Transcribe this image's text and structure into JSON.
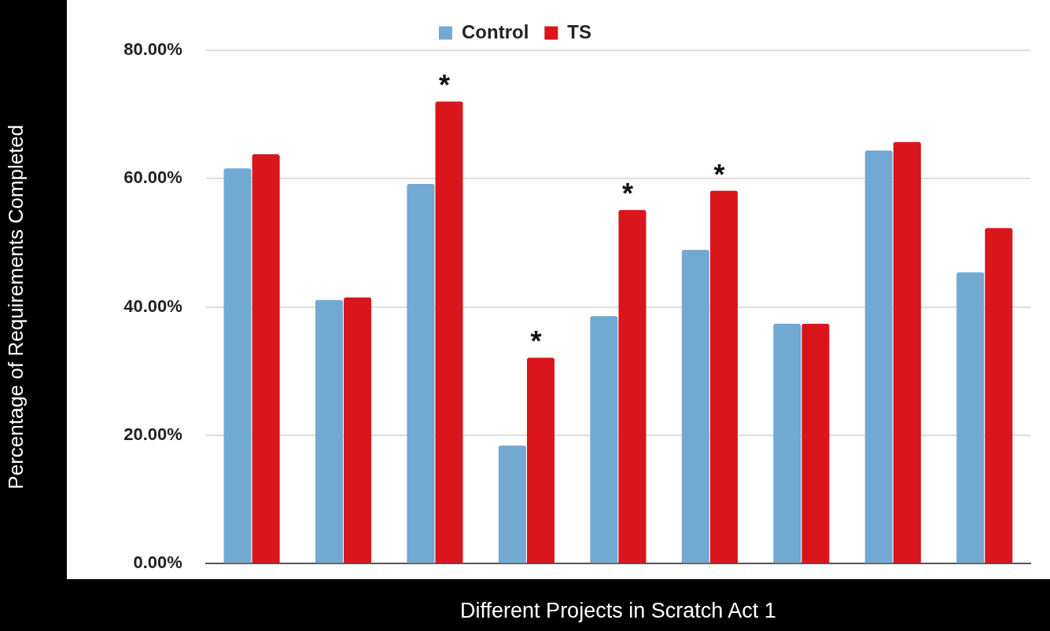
{
  "chart_data": {
    "type": "bar",
    "xlabel": "Different Projects in Scratch Act 1",
    "ylabel": "Percentage of Requirements Completed",
    "categories": [
      null,
      null,
      null,
      null,
      null,
      null,
      null,
      null,
      null
    ],
    "series": [
      {
        "name": "Control",
        "color": "#72a9d2",
        "values": [
          61.6,
          41.1,
          59.2,
          18.4,
          38.6,
          48.9,
          37.4,
          64.4,
          45.4
        ]
      },
      {
        "name": "TS",
        "color": "#d8161b",
        "values": [
          63.8,
          41.5,
          72.0,
          32.1,
          55.1,
          58.1,
          37.4,
          65.7,
          52.3
        ],
        "value_labels": [
          null,
          null,
          "*",
          "*",
          "*",
          "*",
          null,
          null,
          null
        ]
      }
    ],
    "ylim": [
      0,
      80
    ],
    "yticks": [
      {
        "value": 0,
        "label": "0.00%"
      },
      {
        "value": 20,
        "label": "20.00%"
      },
      {
        "value": 40,
        "label": "40.00%"
      },
      {
        "value": 60,
        "label": "60.00%"
      },
      {
        "value": 80,
        "label": "80.00%"
      }
    ],
    "grid": "y",
    "legend": "top"
  }
}
